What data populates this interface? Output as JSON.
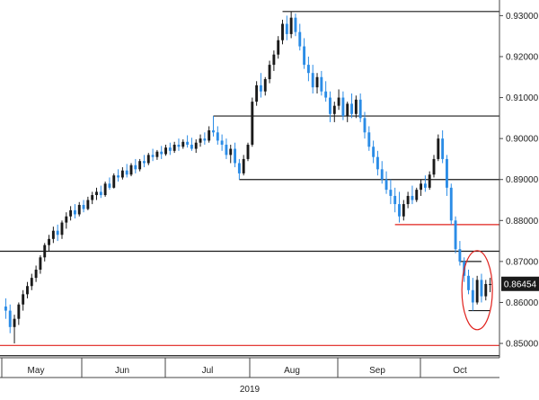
{
  "chart_data": {
    "type": "candlestick",
    "title": "",
    "xlabel": "2019",
    "ylabel": "",
    "ylim": [
      0.8465,
      0.9325
    ],
    "y_ticks": [
      "0.85000",
      "0.86000",
      "0.87000",
      "0.88000",
      "0.89000",
      "0.90000",
      "0.91000",
      "0.92000",
      "0.93000"
    ],
    "y_tick_values": [
      0.85,
      0.86,
      0.87,
      0.88,
      0.89,
      0.9,
      0.91,
      0.92,
      0.93
    ],
    "x_month_labels": [
      "May",
      "Jun",
      "Jul",
      "Aug",
      "Sep",
      "Oct"
    ],
    "year_label": "2019",
    "last_price": "0.86454",
    "last_price_value": 0.86454,
    "colors": {
      "up": "#1a1a1a",
      "down": "#2b8ce6",
      "support_line": "#1a1a1a",
      "resistance_line": "#e0201b",
      "highlight_circle": "#e0201b",
      "badge_bg": "#1a1a1a"
    },
    "horizontal_lines": [
      {
        "level": 0.931,
        "from_index": 64,
        "to_index": 115,
        "color": "black"
      },
      {
        "level": 0.9055,
        "from_index": 48,
        "to_index": 115,
        "color": "black"
      },
      {
        "level": 0.89,
        "from_index": 54,
        "to_index": 115,
        "color": "black"
      },
      {
        "level": 0.879,
        "from_index": 90,
        "to_index": 115,
        "color": "red"
      },
      {
        "level": 0.8725,
        "from_index": 0,
        "to_index": 115,
        "color": "black"
      },
      {
        "level": 0.87,
        "from_index": 105,
        "to_index": 110,
        "color": "black"
      },
      {
        "level": 0.858,
        "from_index": 107,
        "to_index": 112,
        "color": "black"
      },
      {
        "level": 0.8495,
        "from_index": 0,
        "to_index": 115,
        "color": "red"
      },
      {
        "level": 0.847,
        "from_index": 0,
        "to_index": 115,
        "color": "black"
      }
    ],
    "highlight": {
      "index": 109,
      "level": 0.863,
      "label": "circled-recent-lows"
    },
    "candles": [
      [
        0.859,
        0.861,
        0.856,
        0.858
      ],
      [
        0.858,
        0.8595,
        0.8525,
        0.854
      ],
      [
        0.854,
        0.857,
        0.85,
        0.856
      ],
      [
        0.856,
        0.86,
        0.8545,
        0.8595
      ],
      [
        0.8595,
        0.863,
        0.858,
        0.862
      ],
      [
        0.862,
        0.865,
        0.861,
        0.864
      ],
      [
        0.864,
        0.867,
        0.863,
        0.866
      ],
      [
        0.866,
        0.869,
        0.865,
        0.868
      ],
      [
        0.868,
        0.8715,
        0.867,
        0.871
      ],
      [
        0.871,
        0.8745,
        0.87,
        0.874
      ],
      [
        0.874,
        0.8765,
        0.8725,
        0.8755
      ],
      [
        0.8755,
        0.8785,
        0.8745,
        0.8775
      ],
      [
        0.8775,
        0.879,
        0.875,
        0.8765
      ],
      [
        0.8765,
        0.88,
        0.8755,
        0.8795
      ],
      [
        0.8795,
        0.882,
        0.878,
        0.881
      ],
      [
        0.881,
        0.8835,
        0.88,
        0.8825
      ],
      [
        0.8825,
        0.884,
        0.8805,
        0.8815
      ],
      [
        0.8815,
        0.8845,
        0.881,
        0.8838
      ],
      [
        0.8838,
        0.885,
        0.882,
        0.8828
      ],
      [
        0.8828,
        0.8858,
        0.8825,
        0.885
      ],
      [
        0.885,
        0.887,
        0.884,
        0.8862
      ],
      [
        0.8862,
        0.888,
        0.885,
        0.887
      ],
      [
        0.887,
        0.8885,
        0.8855,
        0.8862
      ],
      [
        0.8862,
        0.8895,
        0.8858,
        0.889
      ],
      [
        0.889,
        0.8905,
        0.8875,
        0.888
      ],
      [
        0.888,
        0.8915,
        0.8878,
        0.891
      ],
      [
        0.891,
        0.8925,
        0.8895,
        0.8905
      ],
      [
        0.8905,
        0.893,
        0.89,
        0.8922
      ],
      [
        0.8922,
        0.8938,
        0.8905,
        0.8912
      ],
      [
        0.8912,
        0.894,
        0.8908,
        0.8935
      ],
      [
        0.8935,
        0.895,
        0.8915,
        0.8925
      ],
      [
        0.8925,
        0.895,
        0.892,
        0.8945
      ],
      [
        0.8945,
        0.896,
        0.893,
        0.894
      ],
      [
        0.894,
        0.8965,
        0.8935,
        0.896
      ],
      [
        0.896,
        0.8975,
        0.8945,
        0.8955
      ],
      [
        0.8955,
        0.8972,
        0.8948,
        0.8968
      ],
      [
        0.8968,
        0.8982,
        0.895,
        0.8962
      ],
      [
        0.8962,
        0.8985,
        0.8958,
        0.8978
      ],
      [
        0.8978,
        0.899,
        0.896,
        0.897
      ],
      [
        0.897,
        0.8992,
        0.8965,
        0.8985
      ],
      [
        0.8985,
        0.9,
        0.897,
        0.898
      ],
      [
        0.898,
        0.8998,
        0.8975,
        0.8992
      ],
      [
        0.8992,
        0.9008,
        0.8978,
        0.8985
      ],
      [
        0.8985,
        0.9002,
        0.897,
        0.8975
      ],
      [
        0.8975,
        0.8998,
        0.8965,
        0.899
      ],
      [
        0.899,
        0.901,
        0.898,
        0.9
      ],
      [
        0.9,
        0.9015,
        0.8985,
        0.8995
      ],
      [
        0.8995,
        0.903,
        0.899,
        0.902
      ],
      [
        0.902,
        0.9055,
        0.9005,
        0.9015
      ],
      [
        0.9015,
        0.903,
        0.8985,
        0.8995
      ],
      [
        0.8995,
        0.901,
        0.897,
        0.8985
      ],
      [
        0.8985,
        0.9,
        0.895,
        0.896
      ],
      [
        0.896,
        0.8985,
        0.894,
        0.8975
      ],
      [
        0.8975,
        0.899,
        0.893,
        0.894
      ],
      [
        0.894,
        0.895,
        0.89,
        0.8915
      ],
      [
        0.8915,
        0.896,
        0.891,
        0.895
      ],
      [
        0.895,
        0.899,
        0.8945,
        0.8985
      ],
      [
        0.8985,
        0.91,
        0.898,
        0.909
      ],
      [
        0.909,
        0.914,
        0.908,
        0.913
      ],
      [
        0.913,
        0.916,
        0.91,
        0.9115
      ],
      [
        0.9115,
        0.915,
        0.9105,
        0.9145
      ],
      [
        0.9145,
        0.919,
        0.9135,
        0.918
      ],
      [
        0.918,
        0.9215,
        0.9165,
        0.9205
      ],
      [
        0.9205,
        0.925,
        0.9195,
        0.924
      ],
      [
        0.924,
        0.929,
        0.923,
        0.928
      ],
      [
        0.928,
        0.93,
        0.924,
        0.9255
      ],
      [
        0.9255,
        0.931,
        0.9245,
        0.9295
      ],
      [
        0.9295,
        0.9305,
        0.925,
        0.926
      ],
      [
        0.926,
        0.928,
        0.9215,
        0.9225
      ],
      [
        0.9225,
        0.9245,
        0.917,
        0.918
      ],
      [
        0.918,
        0.92,
        0.914,
        0.916
      ],
      [
        0.916,
        0.918,
        0.911,
        0.9125
      ],
      [
        0.9125,
        0.916,
        0.911,
        0.915
      ],
      [
        0.915,
        0.9165,
        0.9105,
        0.9115
      ],
      [
        0.9115,
        0.914,
        0.909,
        0.91
      ],
      [
        0.91,
        0.9115,
        0.904,
        0.906
      ],
      [
        0.906,
        0.909,
        0.904,
        0.908
      ],
      [
        0.908,
        0.912,
        0.907,
        0.91
      ],
      [
        0.91,
        0.9115,
        0.9045,
        0.9055
      ],
      [
        0.9055,
        0.909,
        0.904,
        0.9085
      ],
      [
        0.9085,
        0.911,
        0.905,
        0.906
      ],
      [
        0.906,
        0.9105,
        0.905,
        0.9095
      ],
      [
        0.9095,
        0.911,
        0.904,
        0.905
      ],
      [
        0.905,
        0.9065,
        0.9,
        0.9015
      ],
      [
        0.9015,
        0.903,
        0.897,
        0.898
      ],
      [
        0.898,
        0.8995,
        0.894,
        0.8955
      ],
      [
        0.8955,
        0.897,
        0.891,
        0.8925
      ],
      [
        0.8925,
        0.8945,
        0.889,
        0.89
      ],
      [
        0.89,
        0.892,
        0.8865,
        0.8875
      ],
      [
        0.8875,
        0.89,
        0.884,
        0.886
      ],
      [
        0.886,
        0.888,
        0.882,
        0.884
      ],
      [
        0.884,
        0.887,
        0.8795,
        0.881
      ],
      [
        0.881,
        0.885,
        0.88,
        0.884
      ],
      [
        0.884,
        0.887,
        0.883,
        0.886
      ],
      [
        0.886,
        0.8885,
        0.884,
        0.885
      ],
      [
        0.885,
        0.888,
        0.8845,
        0.8875
      ],
      [
        0.8875,
        0.89,
        0.886,
        0.889
      ],
      [
        0.889,
        0.891,
        0.887,
        0.888
      ],
      [
        0.888,
        0.892,
        0.8875,
        0.8912
      ],
      [
        0.8912,
        0.896,
        0.8905,
        0.895
      ],
      [
        0.895,
        0.901,
        0.8945,
        0.9
      ],
      [
        0.9,
        0.902,
        0.894,
        0.895
      ],
      [
        0.895,
        0.896,
        0.886,
        0.888
      ],
      [
        0.888,
        0.889,
        0.879,
        0.88
      ],
      [
        0.88,
        0.881,
        0.872,
        0.873
      ],
      [
        0.873,
        0.875,
        0.869,
        0.87
      ],
      [
        0.87,
        0.871,
        0.865,
        0.8665
      ],
      [
        0.8665,
        0.868,
        0.862,
        0.863
      ],
      [
        0.863,
        0.866,
        0.858,
        0.86
      ],
      [
        0.86,
        0.8665,
        0.8595,
        0.8655
      ],
      [
        0.8655,
        0.867,
        0.86,
        0.8615
      ],
      [
        0.8615,
        0.8655,
        0.8605,
        0.8645
      ],
      [
        0.8645,
        0.866,
        0.8625,
        0.8645
      ]
    ]
  }
}
